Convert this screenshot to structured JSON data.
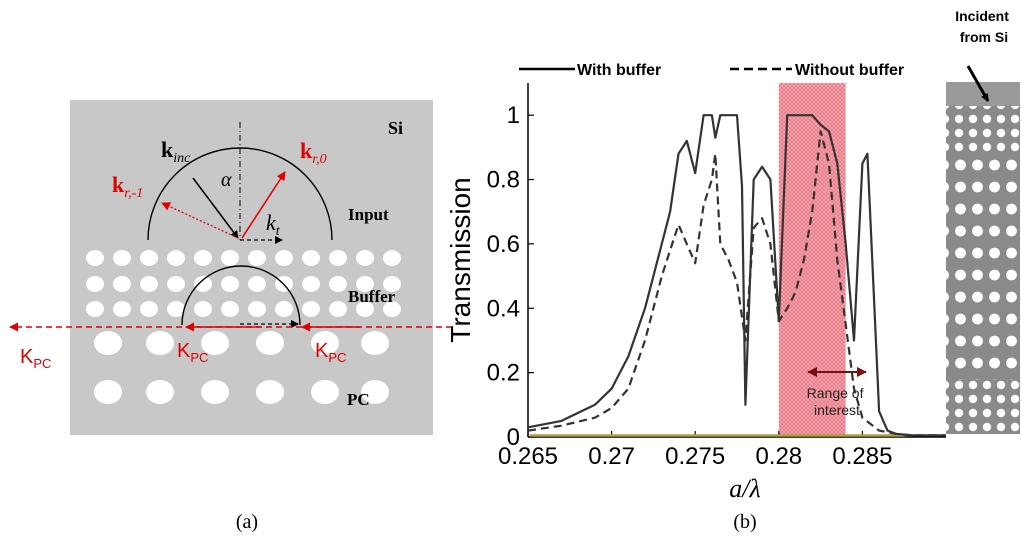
{
  "panel_a": {
    "caption": "(a)",
    "labels": {
      "si": "Si",
      "input": "Input",
      "buffer": "Buffer",
      "pc": "PC",
      "alpha": "α",
      "k_inc_main": "k",
      "k_inc_sub": "inc",
      "k_r0_main": "k",
      "k_r0_sub": "r,0",
      "k_rm1_main": "k",
      "k_rm1_sub": "r,-1",
      "k_t_main": "k",
      "k_t_sub": "t",
      "kpc_main": "K",
      "kpc_sub": "PC"
    },
    "colors": {
      "background": "#c8c8c8",
      "accent": "#e00000",
      "holes": "#ffffff"
    }
  },
  "panel_b": {
    "caption": "(b)",
    "inset_label_line1": "Incident",
    "inset_label_line2": "from Si",
    "range_label_line1": "Range of",
    "range_label_line2": "interest",
    "legend": [
      {
        "label": "With buffer",
        "style": "solid"
      },
      {
        "label": "Without buffer",
        "style": "dashed"
      }
    ]
  },
  "chart_data": {
    "type": "line",
    "xlabel": "a/λ",
    "ylabel": "Transmission",
    "xlim": [
      0.265,
      0.29
    ],
    "ylim": [
      0,
      1.1
    ],
    "xticks": [
      0.265,
      0.27,
      0.275,
      0.28,
      0.285
    ],
    "xtick_labels": [
      "0.265",
      "0.27",
      "0.275",
      "0.28",
      "0.285"
    ],
    "yticks": [
      0,
      0.2,
      0.4,
      0.6,
      0.8,
      1
    ],
    "ytick_labels": [
      "0",
      "0.2",
      "0.4",
      "0.6",
      "0.8",
      "1"
    ],
    "grid": false,
    "legend_position": "top",
    "highlight_band": {
      "x0": 0.28,
      "x1": 0.284,
      "color": "#e05060"
    },
    "series": [
      {
        "name": "With buffer",
        "style": "solid",
        "color": "#333333",
        "x": [
          0.265,
          0.267,
          0.269,
          0.27,
          0.271,
          0.272,
          0.273,
          0.2735,
          0.274,
          0.2745,
          0.275,
          0.2755,
          0.276,
          0.2762,
          0.2765,
          0.277,
          0.2775,
          0.2778,
          0.278,
          0.2785,
          0.279,
          0.2795,
          0.28,
          0.2805,
          0.281,
          0.282,
          0.2825,
          0.283,
          0.2835,
          0.284,
          0.2845,
          0.285,
          0.2853,
          0.2855,
          0.286,
          0.2865,
          0.287,
          0.288,
          0.29
        ],
        "y": [
          0.03,
          0.05,
          0.1,
          0.15,
          0.25,
          0.4,
          0.6,
          0.7,
          0.88,
          0.92,
          0.82,
          1.0,
          1.0,
          0.93,
          1.0,
          1.0,
          1.0,
          0.78,
          0.1,
          0.8,
          0.84,
          0.8,
          0.36,
          1.0,
          1.0,
          1.0,
          0.97,
          0.95,
          0.85,
          0.6,
          0.3,
          0.85,
          0.88,
          0.65,
          0.08,
          0.02,
          0.01,
          0.005,
          0.005
        ]
      },
      {
        "name": "Without buffer",
        "style": "dashed",
        "color": "#333333",
        "x": [
          0.265,
          0.267,
          0.269,
          0.27,
          0.271,
          0.272,
          0.273,
          0.2735,
          0.274,
          0.2745,
          0.275,
          0.2755,
          0.276,
          0.2762,
          0.2765,
          0.277,
          0.2775,
          0.278,
          0.2785,
          0.279,
          0.2795,
          0.28,
          0.2805,
          0.281,
          0.2815,
          0.282,
          0.2825,
          0.283,
          0.2835,
          0.284,
          0.2845,
          0.285,
          0.2855,
          0.286,
          0.287,
          0.288,
          0.29
        ],
        "y": [
          0.02,
          0.035,
          0.06,
          0.09,
          0.15,
          0.3,
          0.5,
          0.58,
          0.66,
          0.6,
          0.54,
          0.72,
          0.8,
          0.88,
          0.6,
          0.55,
          0.48,
          0.3,
          0.65,
          0.68,
          0.6,
          0.36,
          0.4,
          0.45,
          0.55,
          0.7,
          0.95,
          0.85,
          0.55,
          0.35,
          0.15,
          0.06,
          0.04,
          0.02,
          0.01,
          0.005,
          0.005
        ]
      }
    ]
  }
}
